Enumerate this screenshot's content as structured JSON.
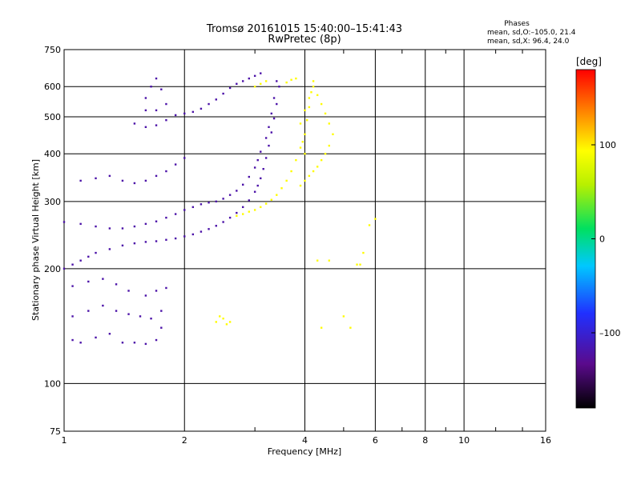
{
  "chart_data": {
    "type": "scatter",
    "title": "Tromsø 20161015 15:40:00–15:41:43",
    "subtitle": "RwPretec (8p)",
    "stats_header": "Phases",
    "stats": [
      "mean, sd,O:–105.0, 21.4",
      "mean, sd,X:  96.4, 24.0"
    ],
    "xlabel": "Frequency [MHz]",
    "ylabel": "Stationary phase Virtual Height [km]",
    "x_scale": "log",
    "y_scale": "log",
    "xlim": [
      1,
      16
    ],
    "ylim": [
      75,
      750
    ],
    "x_ticks": [
      "1",
      "2",
      "4",
      "6",
      "8",
      "10",
      "16"
    ],
    "x_tick_values": [
      1,
      2,
      4,
      6,
      8,
      10,
      16
    ],
    "y_ticks": [
      "75",
      "100",
      "200",
      "300",
      "400",
      "500",
      "600",
      "750"
    ],
    "y_tick_values": [
      75,
      100,
      200,
      300,
      400,
      500,
      600,
      750
    ],
    "grid_x": [
      2,
      4,
      6,
      8,
      10
    ],
    "grid_y": [
      100,
      200,
      300,
      400,
      500,
      600
    ],
    "minor_x": [
      3,
      5,
      7,
      9,
      12,
      14
    ],
    "colorbar": {
      "label": "[deg]",
      "range": [
        -180,
        180
      ],
      "ticks": [
        "100",
        "0",
        "–100"
      ],
      "tick_values": [
        100,
        0,
        -100
      ]
    },
    "series": [
      {
        "description": "O-mode",
        "phase_deg": -120,
        "points": [
          [
            1.0,
            200
          ],
          [
            1.05,
            205
          ],
          [
            1.1,
            210
          ],
          [
            1.15,
            215
          ],
          [
            1.2,
            220
          ],
          [
            1.3,
            225
          ],
          [
            1.4,
            230
          ],
          [
            1.5,
            233
          ],
          [
            1.6,
            235
          ],
          [
            1.7,
            236
          ],
          [
            1.8,
            238
          ],
          [
            1.9,
            240
          ],
          [
            2.0,
            243
          ],
          [
            2.1,
            246
          ],
          [
            2.2,
            250
          ],
          [
            2.3,
            254
          ],
          [
            2.4,
            259
          ],
          [
            2.5,
            265
          ],
          [
            2.6,
            272
          ],
          [
            2.7,
            280
          ],
          [
            2.8,
            290
          ],
          [
            2.9,
            302
          ],
          [
            3.0,
            318
          ],
          [
            3.05,
            330
          ],
          [
            3.1,
            345
          ],
          [
            3.15,
            365
          ],
          [
            3.2,
            390
          ],
          [
            3.25,
            420
          ],
          [
            3.3,
            455
          ],
          [
            3.35,
            495
          ],
          [
            3.4,
            540
          ],
          [
            3.45,
            600
          ],
          [
            1.0,
            265
          ],
          [
            1.1,
            262
          ],
          [
            1.2,
            258
          ],
          [
            1.3,
            255
          ],
          [
            1.4,
            255
          ],
          [
            1.5,
            258
          ],
          [
            1.6,
            262
          ],
          [
            1.7,
            266
          ],
          [
            1.8,
            272
          ],
          [
            1.9,
            278
          ],
          [
            2.0,
            285
          ],
          [
            2.1,
            290
          ],
          [
            2.2,
            295
          ],
          [
            2.3,
            298
          ],
          [
            2.4,
            300
          ],
          [
            2.5,
            305
          ],
          [
            2.6,
            312
          ],
          [
            2.7,
            320
          ],
          [
            2.8,
            332
          ],
          [
            2.9,
            348
          ],
          [
            3.0,
            368
          ],
          [
            3.05,
            385
          ],
          [
            3.1,
            405
          ],
          [
            3.2,
            440
          ],
          [
            3.25,
            470
          ],
          [
            3.3,
            510
          ],
          [
            3.35,
            560
          ],
          [
            3.4,
            620
          ],
          [
            1.05,
            130
          ],
          [
            1.1,
            128
          ],
          [
            1.2,
            132
          ],
          [
            1.3,
            135
          ],
          [
            1.4,
            128
          ],
          [
            1.5,
            128
          ],
          [
            1.6,
            127
          ],
          [
            1.7,
            130
          ],
          [
            1.75,
            140
          ],
          [
            1.75,
            155
          ],
          [
            1.05,
            150
          ],
          [
            1.15,
            155
          ],
          [
            1.25,
            160
          ],
          [
            1.35,
            155
          ],
          [
            1.45,
            152
          ],
          [
            1.55,
            150
          ],
          [
            1.65,
            148
          ],
          [
            1.05,
            180
          ],
          [
            1.15,
            185
          ],
          [
            1.25,
            188
          ],
          [
            1.35,
            182
          ],
          [
            1.45,
            175
          ],
          [
            1.6,
            170
          ],
          [
            1.7,
            175
          ],
          [
            1.8,
            178
          ],
          [
            1.1,
            340
          ],
          [
            1.2,
            345
          ],
          [
            1.3,
            350
          ],
          [
            1.4,
            340
          ],
          [
            1.5,
            335
          ],
          [
            1.6,
            340
          ],
          [
            1.7,
            350
          ],
          [
            1.8,
            360
          ],
          [
            1.9,
            375
          ],
          [
            2.0,
            390
          ],
          [
            1.5,
            480
          ],
          [
            1.6,
            470
          ],
          [
            1.7,
            475
          ],
          [
            1.8,
            490
          ],
          [
            1.9,
            505
          ],
          [
            2.0,
            510
          ],
          [
            2.1,
            515
          ],
          [
            2.2,
            525
          ],
          [
            2.3,
            540
          ],
          [
            2.4,
            555
          ],
          [
            2.5,
            575
          ],
          [
            2.6,
            595
          ],
          [
            2.7,
            610
          ],
          [
            2.8,
            620
          ],
          [
            2.9,
            630
          ],
          [
            3.0,
            640
          ],
          [
            3.1,
            650
          ],
          [
            1.6,
            560
          ],
          [
            1.65,
            600
          ],
          [
            1.7,
            630
          ],
          [
            1.75,
            590
          ],
          [
            1.8,
            540
          ],
          [
            1.7,
            520
          ],
          [
            1.6,
            520
          ]
        ]
      },
      {
        "description": "X-mode",
        "phase_deg": 95,
        "points": [
          [
            2.7,
            275
          ],
          [
            2.8,
            278
          ],
          [
            2.9,
            282
          ],
          [
            3.0,
            285
          ],
          [
            3.1,
            290
          ],
          [
            3.2,
            296
          ],
          [
            3.3,
            303
          ],
          [
            3.4,
            312
          ],
          [
            3.5,
            325
          ],
          [
            3.6,
            340
          ],
          [
            3.7,
            360
          ],
          [
            3.8,
            385
          ],
          [
            3.9,
            415
          ],
          [
            4.0,
            450
          ],
          [
            4.05,
            490
          ],
          [
            4.1,
            530
          ],
          [
            4.15,
            580
          ],
          [
            4.2,
            620
          ],
          [
            3.9,
            330
          ],
          [
            4.0,
            340
          ],
          [
            4.1,
            350
          ],
          [
            4.2,
            360
          ],
          [
            4.3,
            370
          ],
          [
            4.4,
            385
          ],
          [
            4.5,
            400
          ],
          [
            4.6,
            420
          ],
          [
            4.7,
            450
          ],
          [
            4.6,
            480
          ],
          [
            4.5,
            510
          ],
          [
            4.4,
            540
          ],
          [
            4.3,
            570
          ],
          [
            4.2,
            600
          ],
          [
            4.1,
            560
          ],
          [
            4.0,
            520
          ],
          [
            3.9,
            480
          ],
          [
            3.95,
            430
          ],
          [
            4.0,
            400
          ],
          [
            2.4,
            145
          ],
          [
            2.45,
            150
          ],
          [
            2.5,
            148
          ],
          [
            2.55,
            143
          ],
          [
            2.6,
            145
          ],
          [
            3.0,
            600
          ],
          [
            3.1,
            610
          ],
          [
            3.2,
            620
          ],
          [
            3.6,
            615
          ],
          [
            3.7,
            625
          ],
          [
            3.8,
            630
          ],
          [
            4.3,
            210
          ],
          [
            4.6,
            210
          ],
          [
            5.4,
            205
          ],
          [
            5.5,
            205
          ],
          [
            4.4,
            140
          ],
          [
            5.0,
            150
          ],
          [
            5.2,
            140
          ],
          [
            5.6,
            220
          ],
          [
            5.8,
            260
          ],
          [
            6.0,
            270
          ]
        ]
      }
    ]
  }
}
